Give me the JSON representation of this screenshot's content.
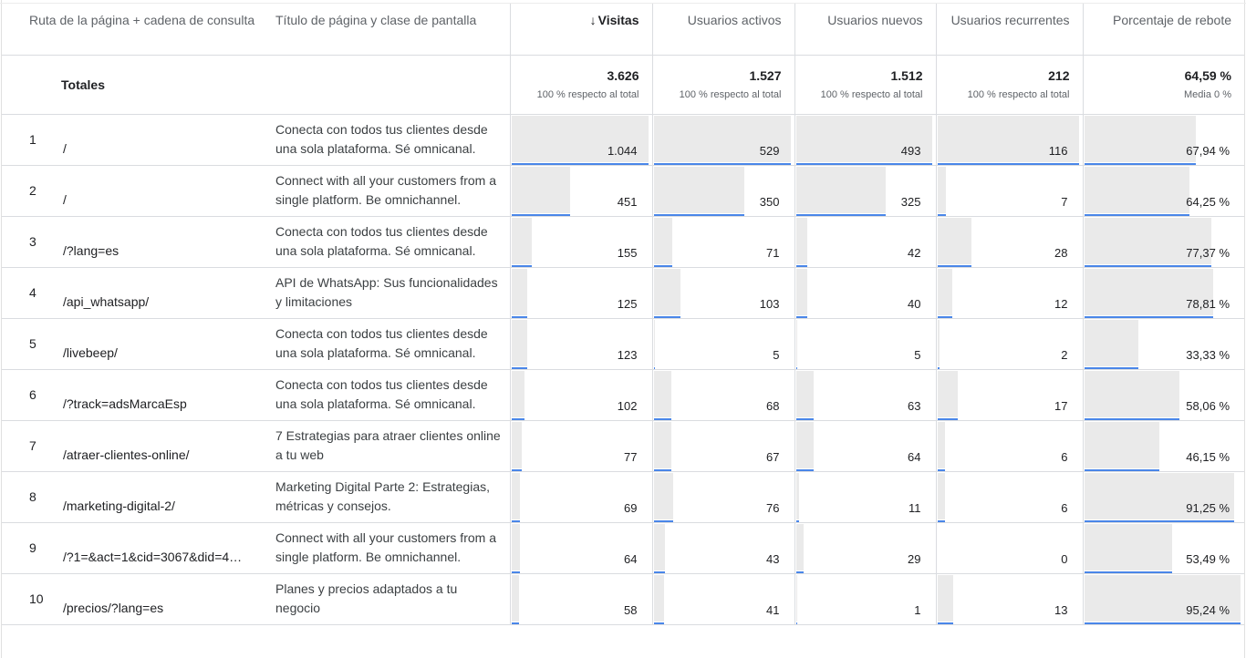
{
  "columns": {
    "page_path": "Ruta de la página + cadena de consulta",
    "page_title": "Título de página y clase de pantalla",
    "views": "Visitas",
    "active_users": "Usuarios activos",
    "new_users": "Usuarios nuevos",
    "returning_users": "Usuarios recurrentes",
    "bounce_rate": "Porcentaje de rebote"
  },
  "sort_indicator": "↓",
  "totals": {
    "label": "Totales",
    "views": "3.626",
    "views_sub": "100 % respecto al total",
    "active_users": "1.527",
    "active_users_sub": "100 % respecto al total",
    "new_users": "1.512",
    "new_users_sub": "100 % respecto al total",
    "returning_users": "212",
    "returning_users_sub": "100 % respecto al total",
    "bounce_rate": "64,59 %",
    "bounce_rate_sub": "Media 0 %"
  },
  "rows": [
    {
      "rank": "1",
      "path": "/",
      "title": "Conecta con todos tus clientes desde una sola plataforma. Sé omnicanal.",
      "views": "1.044",
      "active_users": "529",
      "new_users": "493",
      "returning_users": "116",
      "bounce_rate": "67,94 %",
      "views_ratio": 1.0,
      "active_ratio": 1.0,
      "new_ratio": 1.0,
      "returning_ratio": 1.0,
      "bounce_ratio": 0.7128
    },
    {
      "rank": "2",
      "path": "/",
      "title": "Connect with all your customers from a single platform. Be omnichannel.",
      "views": "451",
      "active_users": "350",
      "new_users": "325",
      "returning_users": "7",
      "bounce_rate": "64,25 %",
      "views_ratio": 0.432,
      "active_ratio": 0.6616,
      "new_ratio": 0.6592,
      "returning_ratio": 0.0603,
      "bounce_ratio": 0.6746
    },
    {
      "rank": "3",
      "path": "/?lang=es",
      "title": "Conecta con todos tus clientes desde una sola plataforma. Sé omnicanal.",
      "views": "155",
      "active_users": "71",
      "new_users": "42",
      "returning_users": "28",
      "bounce_rate": "77,37 %",
      "views_ratio": 0.1485,
      "active_ratio": 0.1342,
      "new_ratio": 0.0852,
      "returning_ratio": 0.2414,
      "bounce_ratio": 0.8124
    },
    {
      "rank": "4",
      "path": "/api_whatsapp/",
      "title": "API de WhatsApp: Sus funcionalidades y limitaciones",
      "views": "125",
      "active_users": "103",
      "new_users": "40",
      "returning_users": "12",
      "bounce_rate": "78,81 %",
      "views_ratio": 0.1197,
      "active_ratio": 0.1947,
      "new_ratio": 0.0811,
      "returning_ratio": 0.1034,
      "bounce_ratio": 0.8275
    },
    {
      "rank": "5",
      "path": "/livebeep/",
      "title": "Conecta con todos tus clientes desde una sola plataforma. Sé omnicanal.",
      "views": "123",
      "active_users": "5",
      "new_users": "5",
      "returning_users": "2",
      "bounce_rate": "33,33 %",
      "views_ratio": 0.1178,
      "active_ratio": 0.0095,
      "new_ratio": 0.0101,
      "returning_ratio": 0.0172,
      "bounce_ratio": 0.35
    },
    {
      "rank": "6",
      "path": "/?track=adsMarcaEsp",
      "title": "Conecta con todos tus clientes desde una sola plataforma. Sé omnicanal.",
      "views": "102",
      "active_users": "68",
      "new_users": "63",
      "returning_users": "17",
      "bounce_rate": "58,06 %",
      "views_ratio": 0.0977,
      "active_ratio": 0.1285,
      "new_ratio": 0.1278,
      "returning_ratio": 0.1466,
      "bounce_ratio": 0.6096
    },
    {
      "rank": "7",
      "path": "/atraer-clientes-online/",
      "title": "7 Estrategias para atraer clientes online a tu web",
      "views": "77",
      "active_users": "67",
      "new_users": "64",
      "returning_users": "6",
      "bounce_rate": "46,15 %",
      "views_ratio": 0.0738,
      "active_ratio": 0.1267,
      "new_ratio": 0.1298,
      "returning_ratio": 0.0517,
      "bounce_ratio": 0.4846
    },
    {
      "rank": "8",
      "path": "/marketing-digital-2/",
      "title": "Marketing Digital Parte 2: Estrategias, métricas y consejos.",
      "views": "69",
      "active_users": "76",
      "new_users": "11",
      "returning_users": "6",
      "bounce_rate": "91,25 %",
      "views_ratio": 0.0661,
      "active_ratio": 0.1437,
      "new_ratio": 0.0223,
      "returning_ratio": 0.0517,
      "bounce_ratio": 0.9581
    },
    {
      "rank": "9",
      "path": "/?1=&act=1&cid=3067&did=44…",
      "title": "Connect with all your customers from a single platform. Be omnichannel.",
      "views": "64",
      "active_users": "43",
      "new_users": "29",
      "returning_users": "0",
      "bounce_rate": "53,49 %",
      "views_ratio": 0.0613,
      "active_ratio": 0.0813,
      "new_ratio": 0.0588,
      "returning_ratio": 0.0,
      "bounce_ratio": 0.5616
    },
    {
      "rank": "10",
      "path": "/precios/?lang=es",
      "title": "Planes y precios adaptados a tu negocio",
      "views": "58",
      "active_users": "41",
      "new_users": "1",
      "returning_users": "13",
      "bounce_rate": "95,24 %",
      "views_ratio": 0.0556,
      "active_ratio": 0.0775,
      "new_ratio": 0.002,
      "returning_ratio": 0.1121,
      "bounce_ratio": 1.0
    }
  ],
  "colors": {
    "bar_fill": "#eaeaea",
    "bar_line": "#4a86e8",
    "border": "#dadce0"
  }
}
